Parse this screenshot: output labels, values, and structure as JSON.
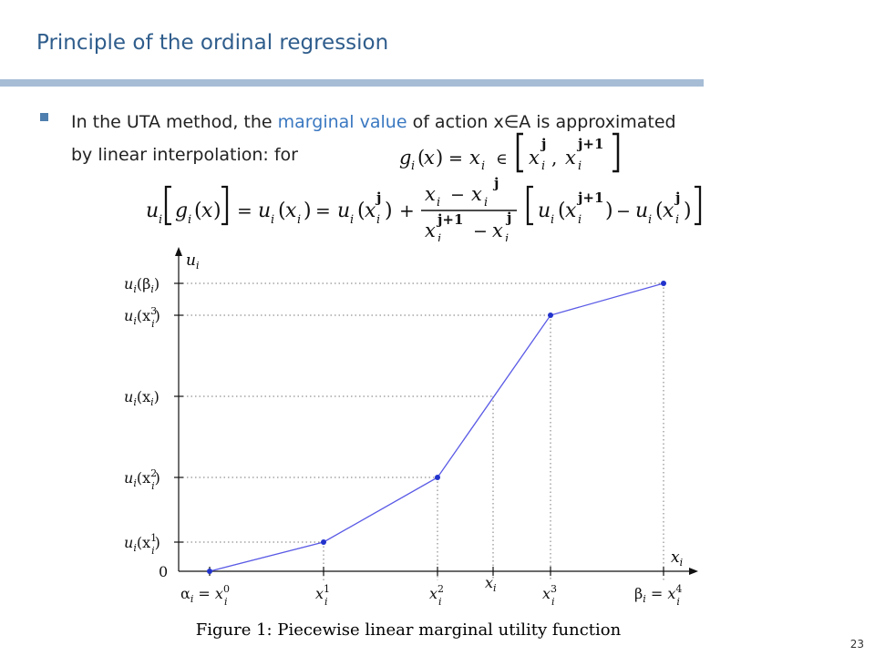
{
  "slide": {
    "title": "Principle of the ordinal regression",
    "page_number": "23",
    "colors": {
      "title": "#2f5d8c",
      "accent": "#3a78c1",
      "rule": "#a7bdd6",
      "curve": "#5a5ae6",
      "point": "#2233cc"
    }
  },
  "bullet": {
    "text_before": "In the UTA method, the ",
    "highlight": "marginal value",
    "text_after": " of action x∈A is approximated",
    "line2": "by linear interpolation:   for"
  },
  "formulas": {
    "interval": {
      "g": "g",
      "sub_i": "i",
      "x": "x",
      "eq": "=",
      "in": "∈",
      "sup_j": "j",
      "sup_j1": "j+1",
      "comma": ","
    },
    "main": {
      "u": "u",
      "g": "g",
      "x": "x",
      "sub_i": "i",
      "sup_j": "j",
      "sup_j1": "j+1",
      "eq": "=",
      "plus": "+",
      "minus": "−"
    }
  },
  "figure": {
    "caption": "Figure 1: Piecewise linear marginal utility function",
    "y_axis_label": "u",
    "y_axis_sub": "i",
    "x_axis_label": "x",
    "x_axis_sub": "i",
    "y_ticks": [
      {
        "main": "u",
        "sub": "i",
        "arg": "(β",
        "argsub": "i",
        "argsup": "",
        "close": ")"
      },
      {
        "main": "u",
        "sub": "i",
        "arg": "(x",
        "argsub": "i",
        "argsup": "3",
        "close": ")"
      },
      {
        "main": "u",
        "sub": "i",
        "arg": "(x",
        "argsub": "i",
        "argsup": "",
        "close": ")"
      },
      {
        "main": "u",
        "sub": "i",
        "arg": "(x",
        "argsub": "i",
        "argsup": "2",
        "close": ")"
      },
      {
        "main": "u",
        "sub": "i",
        "arg": "(x",
        "argsub": "i",
        "argsup": "1",
        "close": ")"
      }
    ],
    "y_zero": "0",
    "x_ticks": [
      {
        "prefix": "α",
        "prefix_sub": "i",
        "eq": " = ",
        "main": "x",
        "sub": "i",
        "sup": "0"
      },
      {
        "prefix": "",
        "prefix_sub": "",
        "eq": "",
        "main": "x",
        "sub": "i",
        "sup": "1"
      },
      {
        "prefix": "",
        "prefix_sub": "",
        "eq": "",
        "main": "x",
        "sub": "i",
        "sup": "2"
      },
      {
        "prefix": "",
        "prefix_sub": "",
        "eq": "",
        "main": "x",
        "sub": "i",
        "sup": ""
      },
      {
        "prefix": "",
        "prefix_sub": "",
        "eq": "",
        "main": "x",
        "sub": "i",
        "sup": "3"
      },
      {
        "prefix": "β",
        "prefix_sub": "i",
        "eq": " = ",
        "main": "x",
        "sub": "i",
        "sup": "4"
      }
    ]
  }
}
